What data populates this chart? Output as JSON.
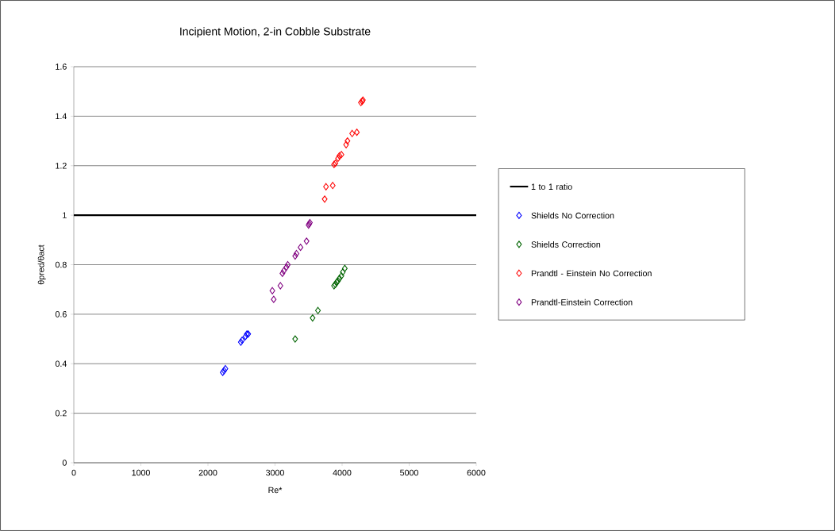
{
  "chart_data": {
    "type": "scatter",
    "title": "Incipient Motion, 2-in Cobble Substrate",
    "xlabel": "Re*",
    "ylabel": "θpred/θact",
    "xlim": [
      0,
      6000
    ],
    "xticks": [
      0,
      1000,
      2000,
      3000,
      4000,
      5000,
      6000
    ],
    "ylim": [
      0,
      1.6
    ],
    "yticks": [
      0,
      0.2,
      0.4,
      0.6,
      0.8,
      1,
      1.2,
      1.4,
      1.6
    ],
    "grid": "y",
    "legend": "right",
    "marker": "diamond",
    "ref_lines": [
      {
        "axis": "y",
        "value": 1,
        "label": "1 to 1 ratio",
        "color": "#000000"
      }
    ],
    "series": [
      {
        "name": "Shields No Correction",
        "color": "#0000ff",
        "x": [
          2220,
          2240,
          2260,
          2490,
          2510,
          2560,
          2580,
          2600
        ],
        "values": [
          0.365,
          0.372,
          0.38,
          0.487,
          0.495,
          0.51,
          0.52,
          0.52
        ]
      },
      {
        "name": "Shields Correction",
        "color": "#006400",
        "x": [
          3300,
          3560,
          3640,
          3880,
          3900,
          3920,
          3940,
          3960,
          3990,
          4010,
          4040
        ],
        "values": [
          0.5,
          0.585,
          0.615,
          0.715,
          0.72,
          0.73,
          0.735,
          0.745,
          0.755,
          0.77,
          0.785
        ]
      },
      {
        "name": "Prandtl - Einstein No Correction",
        "color": "#ff0000",
        "x": [
          3740,
          3760,
          3860,
          3880,
          3900,
          3940,
          3960,
          3990,
          4060,
          4080,
          4150,
          4220,
          4280,
          4300,
          4310
        ],
        "values": [
          1.065,
          1.115,
          1.12,
          1.205,
          1.21,
          1.23,
          1.24,
          1.245,
          1.285,
          1.3,
          1.33,
          1.335,
          1.455,
          1.46,
          1.465
        ]
      },
      {
        "name": "Prandtl-Einstein Correction",
        "color": "#800080",
        "x": [
          2960,
          2980,
          3080,
          3110,
          3130,
          3170,
          3190,
          3300,
          3320,
          3380,
          3470,
          3500,
          3510,
          3520
        ],
        "values": [
          0.695,
          0.66,
          0.715,
          0.765,
          0.775,
          0.79,
          0.8,
          0.835,
          0.845,
          0.87,
          0.895,
          0.96,
          0.965,
          0.97
        ]
      }
    ]
  }
}
